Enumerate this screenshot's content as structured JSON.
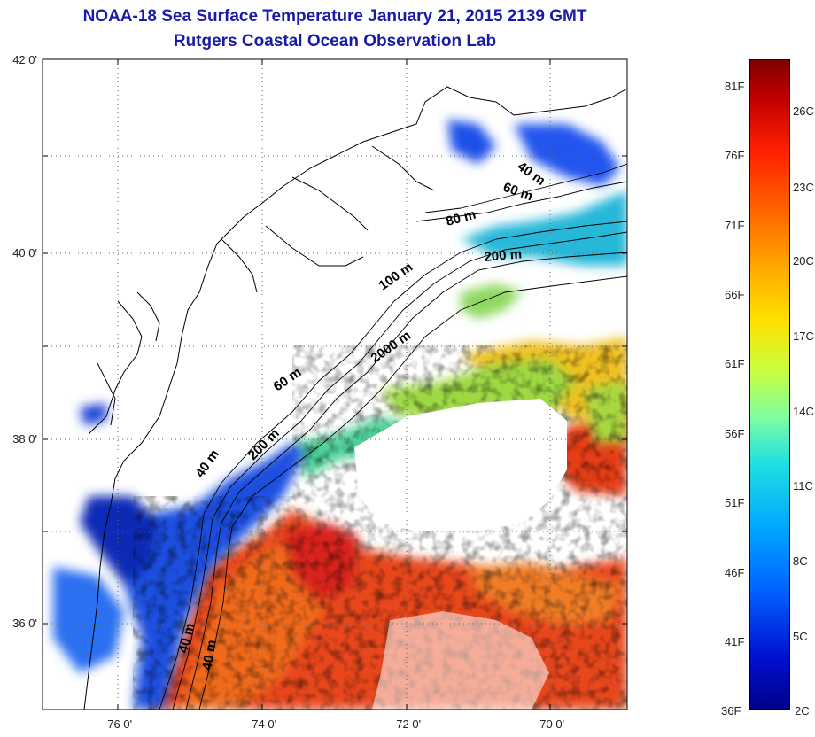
{
  "title_line1": "NOAA-18 Sea Surface Temperature January 21, 2015 2139 GMT",
  "title_line2": "Rutgers Coastal Ocean Observation Lab",
  "lat_labels": [
    "42 0'",
    "40 0'",
    "38 0'",
    "36 0'"
  ],
  "lon_labels": [
    "-76 0'",
    "-74 0'",
    "-72 0'",
    "-70 0'"
  ],
  "contours": [
    {
      "label": "40 m",
      "id": "c40a"
    },
    {
      "label": "60 m",
      "id": "c60a"
    },
    {
      "label": "80 m",
      "id": "c80"
    },
    {
      "label": "200 m",
      "id": "c200a"
    },
    {
      "label": "100 m",
      "id": "c100"
    },
    {
      "label": "2000 m",
      "id": "c2000"
    },
    {
      "label": "60 m",
      "id": "c60b"
    },
    {
      "label": "200 m",
      "id": "c200b"
    },
    {
      "label": "40 m",
      "id": "c40b"
    },
    {
      "label": "40 m",
      "id": "c40c"
    },
    {
      "label": "40 m",
      "id": "c40d"
    }
  ],
  "colorbar": {
    "fahrenheit": [
      "81F",
      "76F",
      "71F",
      "66F",
      "61F",
      "56F",
      "51F",
      "46F",
      "41F",
      "36F"
    ],
    "celsius": [
      "26C",
      "23C",
      "20C",
      "17C",
      "14C",
      "11C",
      "8C",
      "5C",
      "2C"
    ]
  }
}
